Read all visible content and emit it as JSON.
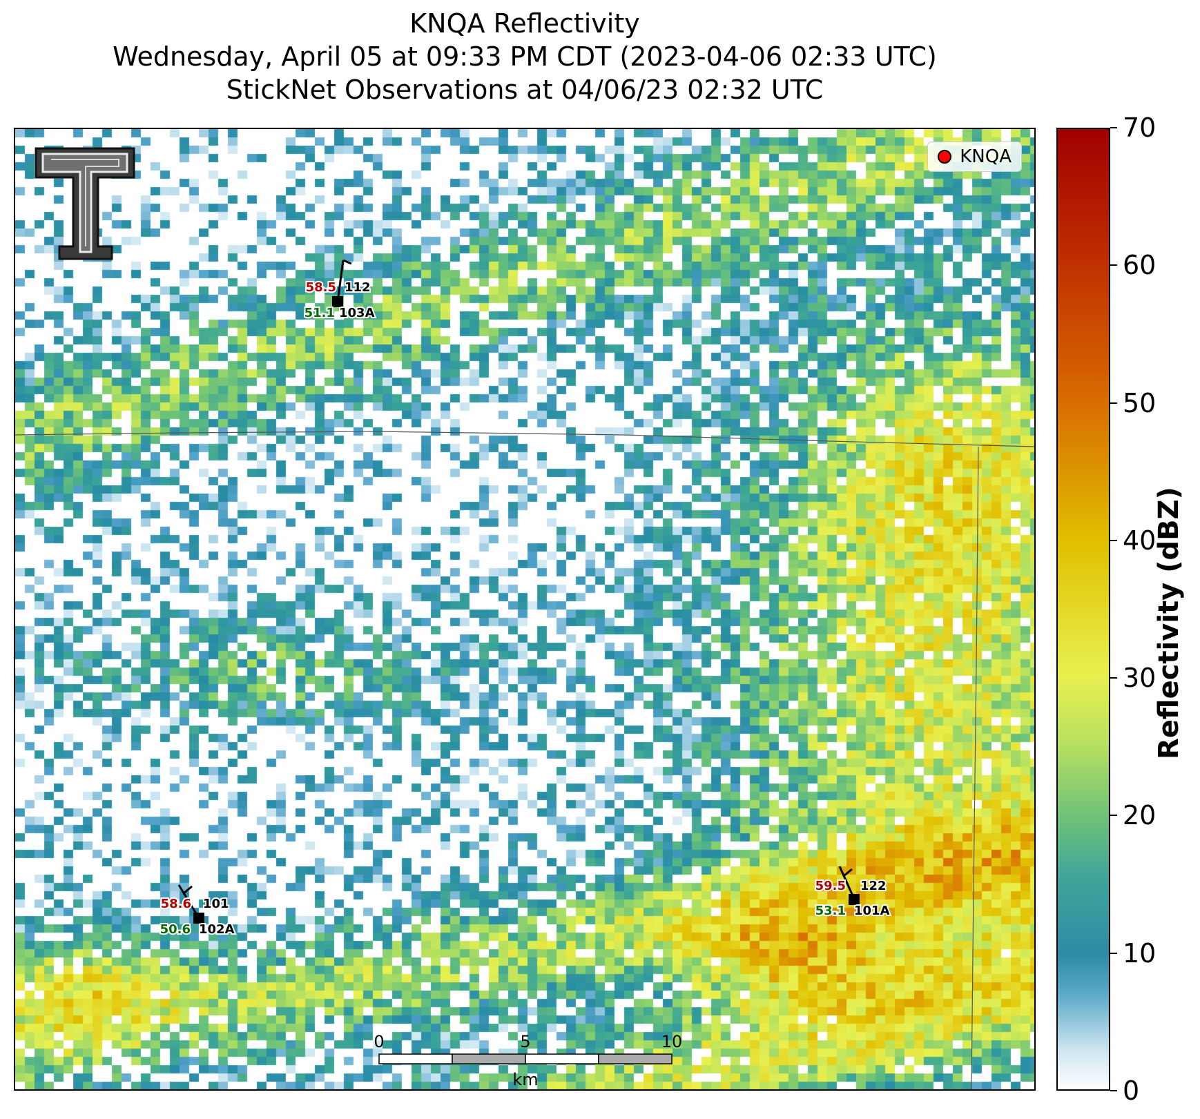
{
  "header": {
    "title": "KNQA Reflectivity",
    "subtitle": "Wednesday, April 05 at 09:33 PM CDT (2023-04-06 02:33 UTC)",
    "subtitle2": "StickNet Observations at 04/06/23 02:32 UTC"
  },
  "legend": {
    "label": "KNQA",
    "marker_color": "#ff0000"
  },
  "colorbar": {
    "label": "Reflectivity (dBZ)",
    "ticks": [
      "0",
      "10",
      "20",
      "30",
      "40",
      "50",
      "60",
      "70"
    ],
    "colors": [
      "#ffffff",
      "#2e8ba6",
      "#6cc07a",
      "#e8f050",
      "#e0c000",
      "#d86a00",
      "#a00000"
    ]
  },
  "scalebar": {
    "labels": [
      "0",
      "5",
      "10"
    ],
    "unit": "km"
  },
  "stations": [
    {
      "id_top": "112",
      "id_bottom": "103A",
      "temp": "58.5",
      "dew": "51.1"
    },
    {
      "id_top": "101",
      "id_bottom": "102A",
      "temp": "58.6",
      "dew": "50.6"
    },
    {
      "id_top": "122",
      "id_bottom": "101A",
      "temp": "59.5",
      "dew": "53.1"
    }
  ],
  "colors": {
    "temp": "#b00000",
    "dew": "#0a6a0a"
  }
}
